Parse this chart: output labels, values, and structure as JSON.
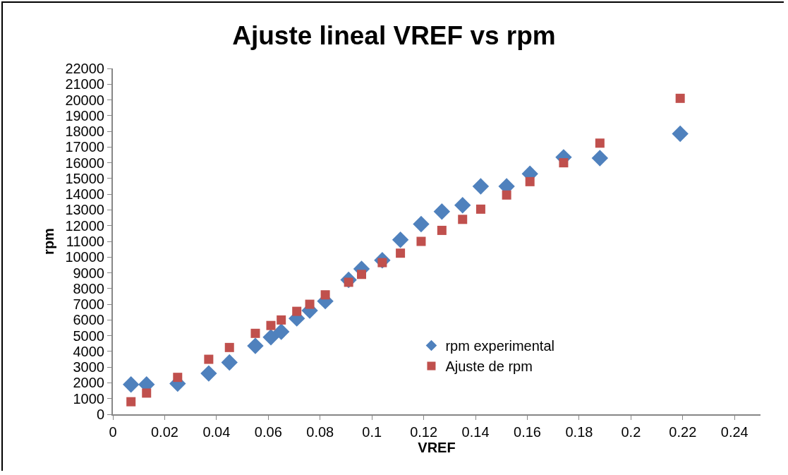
{
  "chart_data": {
    "type": "scatter",
    "title": "Ajuste lineal VREF vs rpm",
    "xlabel": "VREF",
    "ylabel": "rpm",
    "x": [
      0.007,
      0.013,
      0.025,
      0.037,
      0.045,
      0.055,
      0.061,
      0.065,
      0.071,
      0.076,
      0.082,
      0.091,
      0.096,
      0.104,
      0.111,
      0.119,
      0.127,
      0.135,
      0.142,
      0.152,
      0.161,
      0.174,
      0.188,
      0.219
    ],
    "series": [
      {
        "name": "rpm experimental",
        "color": "#4f81bd",
        "marker": "diamond",
        "values": [
          1900,
          1900,
          1950,
          2600,
          3300,
          4350,
          4900,
          5250,
          6100,
          6600,
          7200,
          8550,
          9250,
          9800,
          11100,
          12100,
          12900,
          13300,
          14500,
          14500,
          15300,
          16350,
          16300,
          17850
        ]
      },
      {
        "name": "Ajuste de rpm",
        "color": "#c0504d",
        "marker": "square",
        "values": [
          800,
          1350,
          2350,
          3500,
          4250,
          5150,
          5650,
          6000,
          6550,
          7000,
          7600,
          8400,
          8900,
          9650,
          10250,
          11000,
          11700,
          12400,
          13050,
          13950,
          14800,
          16000,
          17250,
          20100
        ]
      }
    ],
    "xlim": [
      0,
      0.25
    ],
    "xticks": [
      0,
      0.02,
      0.04,
      0.06,
      0.08,
      0.1,
      0.12,
      0.14,
      0.16,
      0.18,
      0.2,
      0.22,
      0.24
    ],
    "ylim": [
      0,
      22000
    ],
    "yticks": [
      0,
      1000,
      2000,
      3000,
      4000,
      5000,
      6000,
      7000,
      8000,
      9000,
      10000,
      11000,
      12000,
      13000,
      14000,
      15000,
      16000,
      17000,
      18000,
      19000,
      20000,
      21000,
      22000
    ],
    "grid": false,
    "legend": "bottom right"
  }
}
